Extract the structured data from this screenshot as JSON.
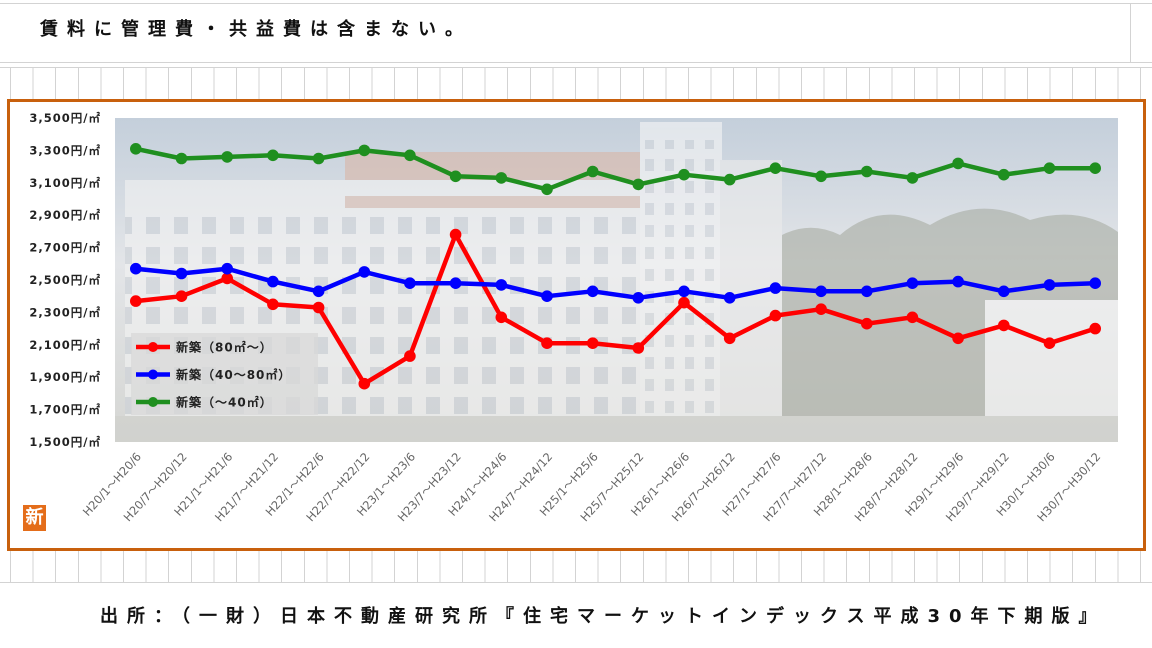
{
  "note": "賃料に管理費・共益費は含まない。",
  "source": "出所：（一財）日本不動産研究所『住宅マーケットインデックス平成30年下期版』",
  "logo_text": "新",
  "colors": {
    "frame_border": "#c8600d",
    "logo_background": "#e46d1a"
  },
  "chart_data": {
    "type": "line",
    "categories": [
      "H20/1～H20/6",
      "H20/7～H20/12",
      "H21/1～H21/6",
      "H21/7～H21/12",
      "H22/1～H22/6",
      "H22/7～H22/12",
      "H23/1～H23/6",
      "H23/7～H23/12",
      "H24/1～H24/6",
      "H24/7～H24/12",
      "H25/1～H25/6",
      "H25/7～H25/12",
      "H26/1～H26/6",
      "H26/7～H26/12",
      "H27/1～H27/6",
      "H27/7～H27/12",
      "H28/1～H28/6",
      "H28/7～H28/12",
      "H29/1～H29/6",
      "H29/7～H29/12",
      "H30/1～H30/6",
      "H30/7～H30/12"
    ],
    "y_ticks": [
      3500,
      3300,
      3100,
      2900,
      2700,
      2500,
      2300,
      2100,
      1900,
      1700,
      1500
    ],
    "y_tick_labels": [
      "3,500円/㎡",
      "3,300円/㎡",
      "3,100円/㎡",
      "2,900円/㎡",
      "2,700円/㎡",
      "2,500円/㎡",
      "2,300円/㎡",
      "2,100円/㎡",
      "1,900円/㎡",
      "1,700円/㎡",
      "1,500円/㎡"
    ],
    "ylim": [
      1500,
      3500
    ],
    "grid": false,
    "legend_position": "lower-left",
    "series": [
      {
        "name": "新築（80㎡～）",
        "color": "#ff0000",
        "values": [
          2370,
          2400,
          2510,
          2350,
          2330,
          1860,
          2030,
          2780,
          2270,
          2110,
          2110,
          2080,
          2360,
          2140,
          2280,
          2320,
          2230,
          2270,
          2140,
          2220,
          2110,
          2200
        ]
      },
      {
        "name": "新築（40～80㎡）",
        "color": "#0000ff",
        "values": [
          2570,
          2540,
          2570,
          2490,
          2430,
          2550,
          2480,
          2480,
          2470,
          2400,
          2430,
          2390,
          2430,
          2390,
          2450,
          2430,
          2430,
          2480,
          2490,
          2430,
          2470,
          2480
        ]
      },
      {
        "name": "新築（～40㎡）",
        "color": "#1f8f1f",
        "values": [
          3310,
          3250,
          3260,
          3270,
          3250,
          3300,
          3270,
          3140,
          3130,
          3060,
          3170,
          3090,
          3150,
          3120,
          3190,
          3140,
          3170,
          3130,
          3220,
          3150,
          3190,
          3190
        ]
      }
    ]
  }
}
